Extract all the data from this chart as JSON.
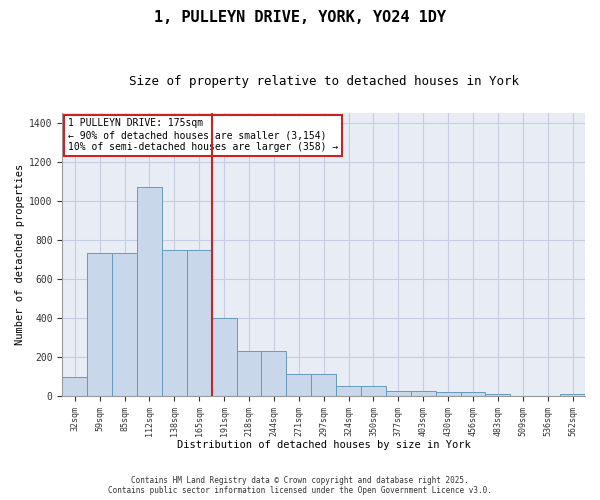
{
  "title1": "1, PULLEYN DRIVE, YORK, YO24 1DY",
  "title2": "Size of property relative to detached houses in York",
  "xlabel": "Distribution of detached houses by size in York",
  "ylabel": "Number of detached properties",
  "categories": [
    "32sqm",
    "59sqm",
    "85sqm",
    "112sqm",
    "138sqm",
    "165sqm",
    "191sqm",
    "218sqm",
    "244sqm",
    "271sqm",
    "297sqm",
    "324sqm",
    "350sqm",
    "377sqm",
    "403sqm",
    "430sqm",
    "456sqm",
    "483sqm",
    "509sqm",
    "536sqm",
    "562sqm"
  ],
  "values": [
    100,
    730,
    730,
    1070,
    750,
    750,
    400,
    230,
    230,
    115,
    115,
    50,
    50,
    25,
    25,
    20,
    20,
    10,
    0,
    0,
    10
  ],
  "bar_color": "#c8d8ea",
  "bar_edge_color": "#6699bb",
  "grid_color": "#c8cce0",
  "bg_color": "#e8ecf4",
  "redline_color": "#cc2222",
  "annotation_text": "1 PULLEYN DRIVE: 175sqm\n← 90% of detached houses are smaller (3,154)\n10% of semi-detached houses are larger (358) →",
  "annotation_box_color": "#ffffff",
  "annotation_box_edge": "#cc2222",
  "ylim": [
    0,
    1450
  ],
  "yticks": [
    0,
    200,
    400,
    600,
    800,
    1000,
    1200,
    1400
  ],
  "footnote1": "Contains HM Land Registry data © Crown copyright and database right 2025.",
  "footnote2": "Contains public sector information licensed under the Open Government Licence v3.0."
}
